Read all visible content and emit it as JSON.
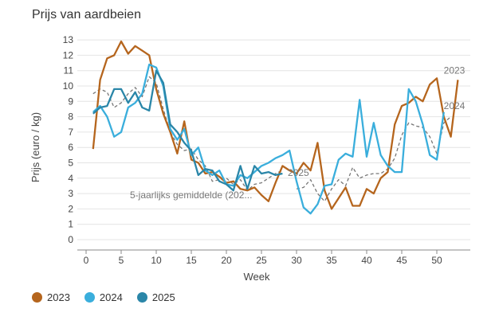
{
  "title": "Prijs van aardbeien",
  "chart_data": {
    "type": "line",
    "title": "Prijs van aardbeien",
    "xlabel": "Week",
    "ylabel": "Prijs (euro / kg)",
    "xlim": [
      0,
      53
    ],
    "ylim": [
      0,
      13.5
    ],
    "xticks": [
      0,
      5,
      10,
      15,
      20,
      25,
      30,
      35,
      40,
      45,
      50
    ],
    "yticks": [
      0,
      1,
      2,
      3,
      4,
      5,
      6,
      7,
      8,
      9,
      10,
      11,
      12,
      13
    ],
    "grid": "horizontal",
    "legend": "bottom-left",
    "series": [
      {
        "name": "2023",
        "color": "#b5651d",
        "label": "2023",
        "values": [
          5.9,
          10.4,
          11.8,
          12.0,
          12.9,
          12.1,
          12.6,
          12.3,
          12.0,
          9.8,
          8.2,
          7.0,
          5.6,
          7.7,
          5.2,
          5.0,
          4.3,
          4.4,
          4.1,
          3.7,
          3.8,
          3.3,
          3.2,
          3.4,
          2.9,
          2.5,
          3.7,
          4.8,
          4.5,
          4.3,
          5.0,
          4.5,
          6.3,
          3.2,
          2.0,
          2.7,
          3.4,
          2.2,
          2.2,
          3.3,
          3.0,
          4.0,
          4.4,
          7.5,
          8.7,
          8.9,
          9.3,
          9.0,
          10.1,
          10.5,
          8.0,
          6.7,
          10.4
        ]
      },
      {
        "name": "2024",
        "color": "#3aaedc",
        "label": "2024",
        "values": [
          8.3,
          8.7,
          8.0,
          6.7,
          7.0,
          8.6,
          8.9,
          9.5,
          11.4,
          11.2,
          10.0,
          7.2,
          6.5,
          7.2,
          5.5,
          6.0,
          4.5,
          4.2,
          4.5,
          3.6,
          3.5,
          4.2,
          4.0,
          4.4,
          4.8,
          5.0,
          5.3,
          5.5,
          5.8,
          3.8,
          2.1,
          1.7,
          2.3,
          3.5,
          3.6,
          5.2,
          5.6,
          5.4,
          9.1,
          5.4,
          7.6,
          5.5,
          4.8,
          4.4,
          4.4,
          9.8,
          9.0,
          7.5,
          5.5,
          5.2,
          8.3
        ]
      },
      {
        "name": "2025",
        "color": "#2a86a8",
        "label": "2025",
        "values": [
          8.2,
          8.6,
          8.7,
          9.8,
          9.8,
          8.9,
          9.6,
          8.6,
          8.4,
          11.0,
          10.2,
          7.5,
          7.0,
          6.3,
          5.8,
          4.2,
          4.6,
          4.5,
          3.8,
          3.6,
          3.2,
          4.8,
          3.3,
          4.8,
          4.3,
          4.4,
          4.2,
          4.3
        ]
      },
      {
        "name": "5-jaarlijks gemiddelde",
        "color": "#777777",
        "dashed": true,
        "label": "5-jaarlijks gemiddelde (202...",
        "values": [
          9.5,
          9.8,
          9.6,
          8.6,
          8.9,
          9.5,
          9.9,
          9.3,
          10.6,
          10.2,
          8.5,
          7.0,
          6.2,
          5.8,
          5.9,
          5.2,
          4.8,
          3.8,
          3.9,
          4.0,
          3.6,
          3.9,
          3.2,
          3.6,
          3.7,
          4.0,
          4.3,
          4.5,
          null,
          3.3,
          3.4,
          3.9,
          3.0,
          2.5,
          3.3,
          3.9,
          3.5,
          4.7,
          4.0,
          4.2,
          4.3,
          4.3,
          4.6,
          5.3,
          6.8,
          7.6,
          7.4,
          7.3,
          6.7,
          5.6,
          7.6,
          8.0
        ]
      }
    ]
  },
  "legend": [
    {
      "label": "2023",
      "color": "#b5651d"
    },
    {
      "label": "2024",
      "color": "#3aaedc"
    },
    {
      "label": "2025",
      "color": "#2a86a8"
    }
  ]
}
